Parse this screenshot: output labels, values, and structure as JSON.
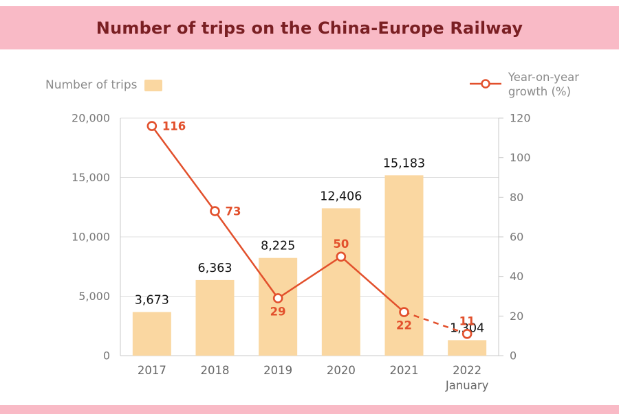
{
  "header": {
    "title": "Number of trips on the China-Europe Railway"
  },
  "legend": {
    "bars_label": "Number of trips",
    "line_label_line1": "Year-on-year",
    "line_label_line2": "growth (%)"
  },
  "colors": {
    "bar": "#FAD7A1",
    "line": "#E2502C",
    "header_bg": "#F9BAC6",
    "page_bg": "#FFFFFF",
    "grid": "#E0E0E0",
    "axis": "#C9C9C9",
    "tick_text": "#777777",
    "cat_text": "#666666",
    "bar_label": "#111111",
    "title_text": "#7A1F23",
    "legend_text": "#8B8B8B"
  },
  "chart_data": {
    "type": "bar",
    "subtype": "bar-line-combo",
    "title": "Number of trips on the China-Europe Railway",
    "categories": [
      "2017",
      "2018",
      "2019",
      "2020",
      "2021",
      "2022"
    ],
    "category_sub_labels": [
      "",
      "",
      "",
      "",
      "",
      "January"
    ],
    "series": [
      {
        "name": "Number of trips",
        "type": "bar",
        "axis": "left",
        "values": [
          3673,
          6363,
          8225,
          12406,
          15183,
          1304
        ],
        "value_labels": [
          "3,673",
          "6,363",
          "8,225",
          "12,406",
          "15,183",
          "1,304"
        ]
      },
      {
        "name": "Year-on-year growth (%)",
        "type": "line",
        "axis": "right",
        "values": [
          116,
          73,
          29,
          50,
          22,
          11
        ],
        "value_labels": [
          "116",
          "73",
          "29",
          "50",
          "22",
          "11"
        ],
        "label_positions": [
          "right",
          "right",
          "below",
          "above",
          "below",
          "above"
        ],
        "dashed_segment_start_index": 4
      }
    ],
    "left_axis": {
      "min": 0,
      "max": 20000,
      "step": 5000,
      "tick_labels": [
        "0",
        "5,000",
        "10,000",
        "15,000",
        "20,000"
      ]
    },
    "right_axis": {
      "min": 0,
      "max": 120,
      "step": 20,
      "tick_labels": [
        "0",
        "20",
        "40",
        "60",
        "80",
        "100",
        "120"
      ]
    },
    "grid": true,
    "legend_position": "top"
  }
}
